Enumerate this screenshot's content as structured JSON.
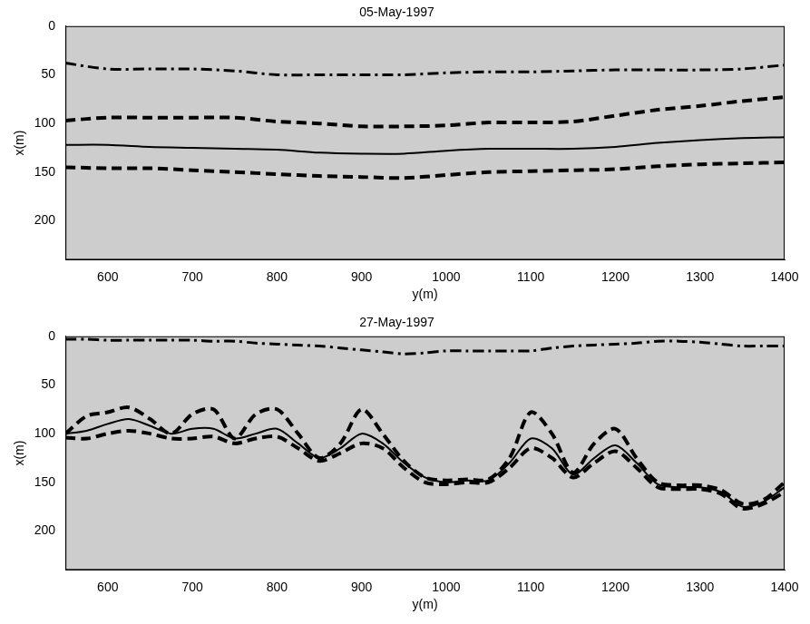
{
  "chart_data": [
    {
      "type": "line",
      "title": "05-May-1997",
      "x_label": "y(m)",
      "y_label": "x(m)",
      "xlim": [
        550,
        1400
      ],
      "xticks": [
        600,
        700,
        800,
        900,
        1000,
        1100,
        1200,
        1300,
        1400
      ],
      "ylim": [
        240,
        0
      ],
      "yticks": [
        0,
        50,
        100,
        150,
        200
      ],
      "grid": false,
      "x": [
        550,
        600,
        650,
        700,
        750,
        800,
        850,
        900,
        950,
        1000,
        1050,
        1100,
        1150,
        1200,
        1250,
        1300,
        1350,
        1400
      ],
      "series": [
        {
          "color": "#000000",
          "line_style": "dashdot",
          "values": [
            38,
            44,
            44,
            44,
            46,
            50,
            50,
            50,
            50,
            48,
            47,
            47,
            46,
            45,
            45,
            45,
            44,
            40
          ]
        },
        {
          "color": "#000000",
          "line_style": "dashed",
          "values": [
            97,
            94,
            94,
            94,
            94,
            98,
            100,
            103,
            103,
            102,
            99,
            99,
            98,
            92,
            86,
            82,
            77,
            73
          ]
        },
        {
          "color": "#000000",
          "line_style": "solid",
          "values": [
            122,
            122,
            124,
            125,
            126,
            127,
            130,
            131,
            131,
            128,
            126,
            126,
            126,
            124,
            120,
            117,
            115,
            114
          ]
        },
        {
          "color": "#000000",
          "line_style": "dashed",
          "values": [
            145,
            146,
            146,
            148,
            150,
            152,
            154,
            155,
            156,
            153,
            150,
            149,
            148,
            147,
            144,
            142,
            141,
            140
          ]
        }
      ]
    },
    {
      "type": "line",
      "title": "27-May-1997",
      "x_label": "y(m)",
      "y_label": "x(m)",
      "xlim": [
        550,
        1400
      ],
      "xticks": [
        600,
        700,
        800,
        900,
        1000,
        1100,
        1200,
        1300,
        1400
      ],
      "ylim": [
        240,
        0
      ],
      "yticks": [
        0,
        50,
        100,
        150,
        200
      ],
      "grid": false,
      "x": [
        550,
        575,
        600,
        625,
        650,
        675,
        700,
        725,
        750,
        775,
        800,
        825,
        850,
        875,
        900,
        925,
        950,
        975,
        1000,
        1025,
        1050,
        1075,
        1100,
        1125,
        1150,
        1175,
        1200,
        1225,
        1250,
        1275,
        1300,
        1325,
        1350,
        1375,
        1400
      ],
      "series": [
        {
          "color": "#000000",
          "line_style": "dashdot",
          "values": [
            3,
            3,
            4,
            4,
            4,
            4,
            4,
            5,
            5,
            7,
            8,
            9,
            10,
            12,
            14,
            16,
            18,
            17,
            15,
            15,
            15,
            15,
            15,
            12,
            10,
            9,
            8,
            7,
            5,
            5,
            6,
            8,
            10,
            10,
            10
          ]
        },
        {
          "color": "#000000",
          "line_style": "dashed",
          "values": [
            100,
            82,
            78,
            73,
            85,
            100,
            80,
            75,
            105,
            80,
            75,
            100,
            125,
            110,
            75,
            100,
            128,
            145,
            148,
            147,
            147,
            125,
            78,
            100,
            140,
            110,
            95,
            125,
            150,
            153,
            153,
            158,
            172,
            168,
            150
          ]
        },
        {
          "color": "#000000",
          "line_style": "solid",
          "values": [
            100,
            97,
            90,
            85,
            92,
            100,
            95,
            95,
            105,
            100,
            95,
            110,
            125,
            115,
            100,
            110,
            130,
            145,
            150,
            148,
            148,
            130,
            105,
            115,
            142,
            125,
            112,
            130,
            152,
            155,
            155,
            160,
            175,
            170,
            155
          ]
        },
        {
          "color": "#000000",
          "line_style": "dashed",
          "values": [
            104,
            105,
            100,
            97,
            100,
            105,
            105,
            103,
            110,
            105,
            103,
            115,
            128,
            120,
            110,
            115,
            135,
            150,
            152,
            150,
            150,
            135,
            115,
            125,
            145,
            130,
            118,
            135,
            155,
            157,
            157,
            162,
            177,
            172,
            160
          ]
        }
      ]
    }
  ]
}
